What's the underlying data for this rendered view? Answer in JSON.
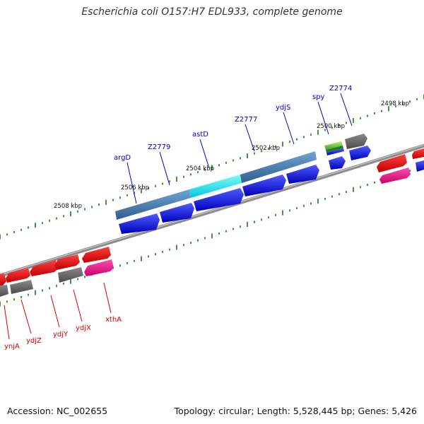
{
  "header": {
    "title": "Escherichia coli O157:H7 EDL933, complete genome"
  },
  "footer": {
    "accession": "Accession: NC_002655",
    "summary": "Topology: circular; Length: 5,528,445 bp; Genes: 5,426"
  },
  "scale_labels": [
    "2498 kbp",
    "2500 kbp",
    "2502 kbp",
    "2504 kbp",
    "2506 kbp",
    "2508 kbp"
  ],
  "gene_labels_top": [
    "argD",
    "Z2779",
    "astD",
    "Z2777",
    "ydjS",
    "spy",
    "Z2774"
  ],
  "gene_labels_bottom": [
    "ynjA",
    "ydjZ",
    "ydjY",
    "ydjX",
    "xthA"
  ],
  "colors": {
    "backbone": "#888888",
    "tick": "#2a8a2a",
    "forward_cds": "#0000e6",
    "reverse_cds": "#e60000",
    "gene_bar": "#4682b4",
    "highlight_gene": "#00e0e0",
    "gray_feature": "#666666",
    "pink_feature": "#e6007e",
    "green_feature": "#7ac943",
    "label_blue": "#0000c8",
    "label_red": "#d80000"
  }
}
